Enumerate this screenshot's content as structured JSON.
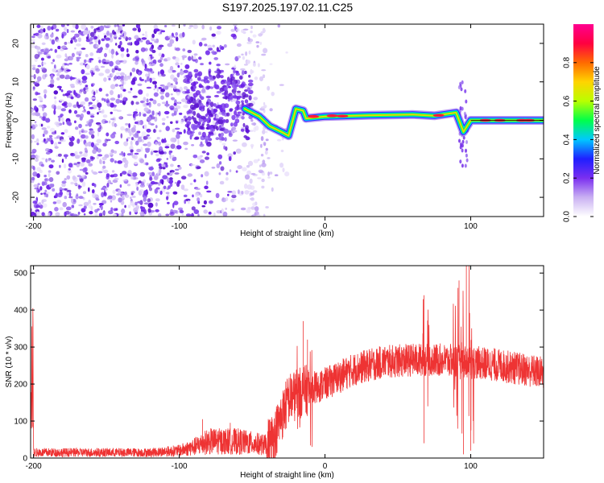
{
  "title": "S197.2025.197.02.11.C25",
  "chart_data": [
    {
      "type": "heatmap",
      "xlabel": "Height of straight line (km)",
      "ylabel": "Frequency (Hz)",
      "xlim": [
        -202,
        150
      ],
      "ylim": [
        -25,
        25
      ],
      "xticks": [
        -200,
        -100,
        0,
        100
      ],
      "yticks": [
        -20,
        -10,
        0,
        10,
        20
      ],
      "colorbar": {
        "label": "Normalized spectral amplitude",
        "ticks": [
          0.0,
          0.2,
          0.4,
          0.6,
          0.8
        ],
        "range": [
          0,
          1
        ],
        "colors": [
          "#ffffff",
          "#c9b0f2",
          "#7b2ff0",
          "#1f1fff",
          "#00c8ff",
          "#00ff4a",
          "#b9ff00",
          "#ffd400",
          "#ff6a00",
          "#ff0040",
          "#ff0090"
        ]
      },
      "ridge": [
        {
          "x": -55,
          "y": 3
        },
        {
          "x": -45,
          "y": 1
        },
        {
          "x": -38,
          "y": -1.5
        },
        {
          "x": -30,
          "y": -3
        },
        {
          "x": -25,
          "y": -4
        },
        {
          "x": -20,
          "y": 3
        },
        {
          "x": -15,
          "y": 2.5
        },
        {
          "x": -13,
          "y": 0.5
        },
        {
          "x": 0,
          "y": 1
        },
        {
          "x": 30,
          "y": 1.3
        },
        {
          "x": 60,
          "y": 1.5
        },
        {
          "x": 75,
          "y": 1.2
        },
        {
          "x": 90,
          "y": 2
        },
        {
          "x": 95,
          "y": -3
        },
        {
          "x": 100,
          "y": 0
        },
        {
          "x": 120,
          "y": 0
        },
        {
          "x": 150,
          "y": 0
        }
      ]
    },
    {
      "type": "line",
      "xlabel": "Height of straight line (km)",
      "ylabel": "SNR (10 * v/v)",
      "xlim": [
        -202,
        150
      ],
      "ylim": [
        0,
        520
      ],
      "xticks": [
        -200,
        -100,
        0,
        100
      ],
      "yticks": [
        0,
        100,
        200,
        300,
        400,
        500
      ],
      "color": "#ee3333",
      "envelope": [
        {
          "x": -200,
          "y": 15
        },
        {
          "x": -120,
          "y": 15
        },
        {
          "x": -100,
          "y": 20
        },
        {
          "x": -90,
          "y": 30
        },
        {
          "x": -80,
          "y": 45
        },
        {
          "x": -60,
          "y": 45
        },
        {
          "x": -40,
          "y": 35
        },
        {
          "x": -35,
          "y": 60
        },
        {
          "x": -30,
          "y": 110
        },
        {
          "x": -25,
          "y": 160
        },
        {
          "x": -15,
          "y": 180
        },
        {
          "x": 0,
          "y": 200
        },
        {
          "x": 20,
          "y": 240
        },
        {
          "x": 40,
          "y": 260
        },
        {
          "x": 60,
          "y": 265
        },
        {
          "x": 80,
          "y": 265
        },
        {
          "x": 100,
          "y": 260
        },
        {
          "x": 120,
          "y": 250
        },
        {
          "x": 150,
          "y": 230
        }
      ],
      "spikes": [
        {
          "x": -84,
          "y": 105
        },
        {
          "x": -65,
          "y": 95
        },
        {
          "x": -15,
          "y": 370
        },
        {
          "x": -12,
          "y": 320
        },
        {
          "x": 68,
          "y": 440
        },
        {
          "x": 68,
          "y": 40
        },
        {
          "x": 92,
          "y": 480
        },
        {
          "x": 95,
          "y": 10
        },
        {
          "x": 97,
          "y": 520
        },
        {
          "x": 100,
          "y": 20
        }
      ]
    }
  ]
}
